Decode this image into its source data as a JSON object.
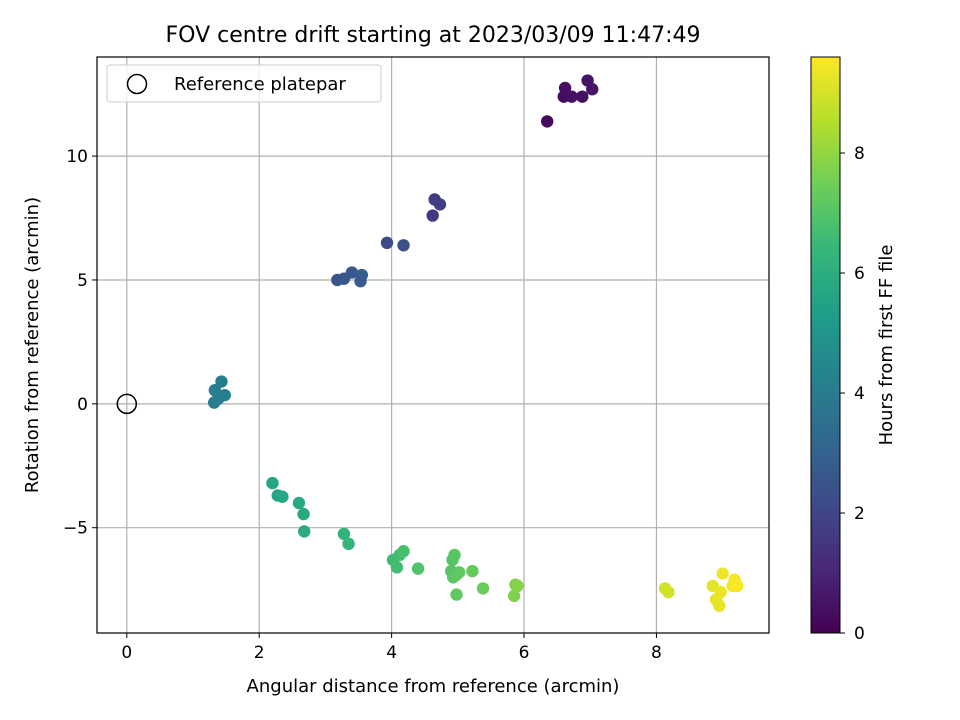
{
  "chart_data": {
    "type": "scatter",
    "title": "FOV centre drift starting at 2023/03/09 11:47:49",
    "xlabel": "Angular distance from reference (arcmin)",
    "ylabel": "Rotation from reference (arcmin)",
    "xlim": [
      -0.45,
      9.7
    ],
    "ylim": [
      -9.25,
      14.0
    ],
    "xticks": [
      0,
      2,
      4,
      6,
      8
    ],
    "yticks": [
      -5,
      0,
      5,
      10
    ],
    "ytick_labels": [
      "−5",
      "0",
      "5",
      "10"
    ],
    "grid": true,
    "legend": {
      "placement": "top-left",
      "entries": [
        "Reference platepar"
      ]
    },
    "reference_point": {
      "name": "Reference platepar",
      "x": 0,
      "y": 0
    },
    "colorbar": {
      "label": "Hours from first FF file",
      "colormap": "viridis",
      "range": [
        0,
        9.6
      ],
      "ticks": [
        0,
        2,
        4,
        6,
        8
      ]
    },
    "points": [
      {
        "x": 6.35,
        "y": 11.4,
        "h": 0.2
      },
      {
        "x": 6.6,
        "y": 12.4,
        "h": 0.3
      },
      {
        "x": 6.62,
        "y": 12.75,
        "h": 0.35
      },
      {
        "x": 6.72,
        "y": 12.4,
        "h": 0.4
      },
      {
        "x": 6.88,
        "y": 12.4,
        "h": 0.45
      },
      {
        "x": 6.96,
        "y": 13.05,
        "h": 0.5
      },
      {
        "x": 7.03,
        "y": 12.7,
        "h": 0.55
      },
      {
        "x": 4.62,
        "y": 7.6,
        "h": 1.6
      },
      {
        "x": 4.65,
        "y": 8.25,
        "h": 1.7
      },
      {
        "x": 4.73,
        "y": 8.05,
        "h": 1.8
      },
      {
        "x": 3.93,
        "y": 6.5,
        "h": 2.2
      },
      {
        "x": 4.18,
        "y": 6.4,
        "h": 2.3
      },
      {
        "x": 3.18,
        "y": 5.0,
        "h": 2.5
      },
      {
        "x": 3.28,
        "y": 5.05,
        "h": 2.6
      },
      {
        "x": 3.4,
        "y": 5.3,
        "h": 2.7
      },
      {
        "x": 3.53,
        "y": 4.95,
        "h": 2.75
      },
      {
        "x": 3.55,
        "y": 5.2,
        "h": 2.8
      },
      {
        "x": 1.32,
        "y": 0.05,
        "h": 4.0
      },
      {
        "x": 1.33,
        "y": 0.55,
        "h": 4.05
      },
      {
        "x": 1.38,
        "y": 0.2,
        "h": 4.1
      },
      {
        "x": 1.43,
        "y": 0.9,
        "h": 4.15
      },
      {
        "x": 1.48,
        "y": 0.35,
        "h": 4.2
      },
      {
        "x": 2.2,
        "y": -3.2,
        "h": 5.6
      },
      {
        "x": 2.28,
        "y": -3.7,
        "h": 5.65
      },
      {
        "x": 2.35,
        "y": -3.75,
        "h": 5.7
      },
      {
        "x": 2.6,
        "y": -4.0,
        "h": 5.8
      },
      {
        "x": 2.67,
        "y": -4.45,
        "h": 5.85
      },
      {
        "x": 2.68,
        "y": -5.15,
        "h": 5.9
      },
      {
        "x": 3.28,
        "y": -5.25,
        "h": 6.2
      },
      {
        "x": 3.35,
        "y": -5.65,
        "h": 6.3
      },
      {
        "x": 4.02,
        "y": -6.3,
        "h": 6.6
      },
      {
        "x": 4.08,
        "y": -6.6,
        "h": 6.65
      },
      {
        "x": 4.12,
        "y": -6.1,
        "h": 6.7
      },
      {
        "x": 4.18,
        "y": -5.95,
        "h": 6.75
      },
      {
        "x": 4.4,
        "y": -6.65,
        "h": 6.9
      },
      {
        "x": 4.9,
        "y": -6.75,
        "h": 7.0
      },
      {
        "x": 4.92,
        "y": -6.3,
        "h": 7.05
      },
      {
        "x": 4.93,
        "y": -7.0,
        "h": 7.1
      },
      {
        "x": 4.95,
        "y": -6.1,
        "h": 7.1
      },
      {
        "x": 4.98,
        "y": -6.9,
        "h": 7.15
      },
      {
        "x": 4.98,
        "y": -7.7,
        "h": 7.2
      },
      {
        "x": 5.02,
        "y": -6.8,
        "h": 7.2
      },
      {
        "x": 5.22,
        "y": -6.75,
        "h": 7.3
      },
      {
        "x": 5.38,
        "y": -7.45,
        "h": 7.4
      },
      {
        "x": 5.85,
        "y": -7.75,
        "h": 7.7
      },
      {
        "x": 5.87,
        "y": -7.3,
        "h": 7.75
      },
      {
        "x": 5.9,
        "y": -7.35,
        "h": 7.8
      },
      {
        "x": 8.13,
        "y": -7.45,
        "h": 8.9
      },
      {
        "x": 8.18,
        "y": -7.6,
        "h": 8.95
      },
      {
        "x": 8.85,
        "y": -7.35,
        "h": 9.2
      },
      {
        "x": 8.9,
        "y": -7.9,
        "h": 9.25
      },
      {
        "x": 8.95,
        "y": -8.15,
        "h": 9.3
      },
      {
        "x": 8.97,
        "y": -7.6,
        "h": 9.35
      },
      {
        "x": 9.0,
        "y": -6.85,
        "h": 9.4
      },
      {
        "x": 9.15,
        "y": -7.35,
        "h": 9.45
      },
      {
        "x": 9.18,
        "y": -7.1,
        "h": 9.5
      },
      {
        "x": 9.22,
        "y": -7.35,
        "h": 9.55
      }
    ]
  }
}
